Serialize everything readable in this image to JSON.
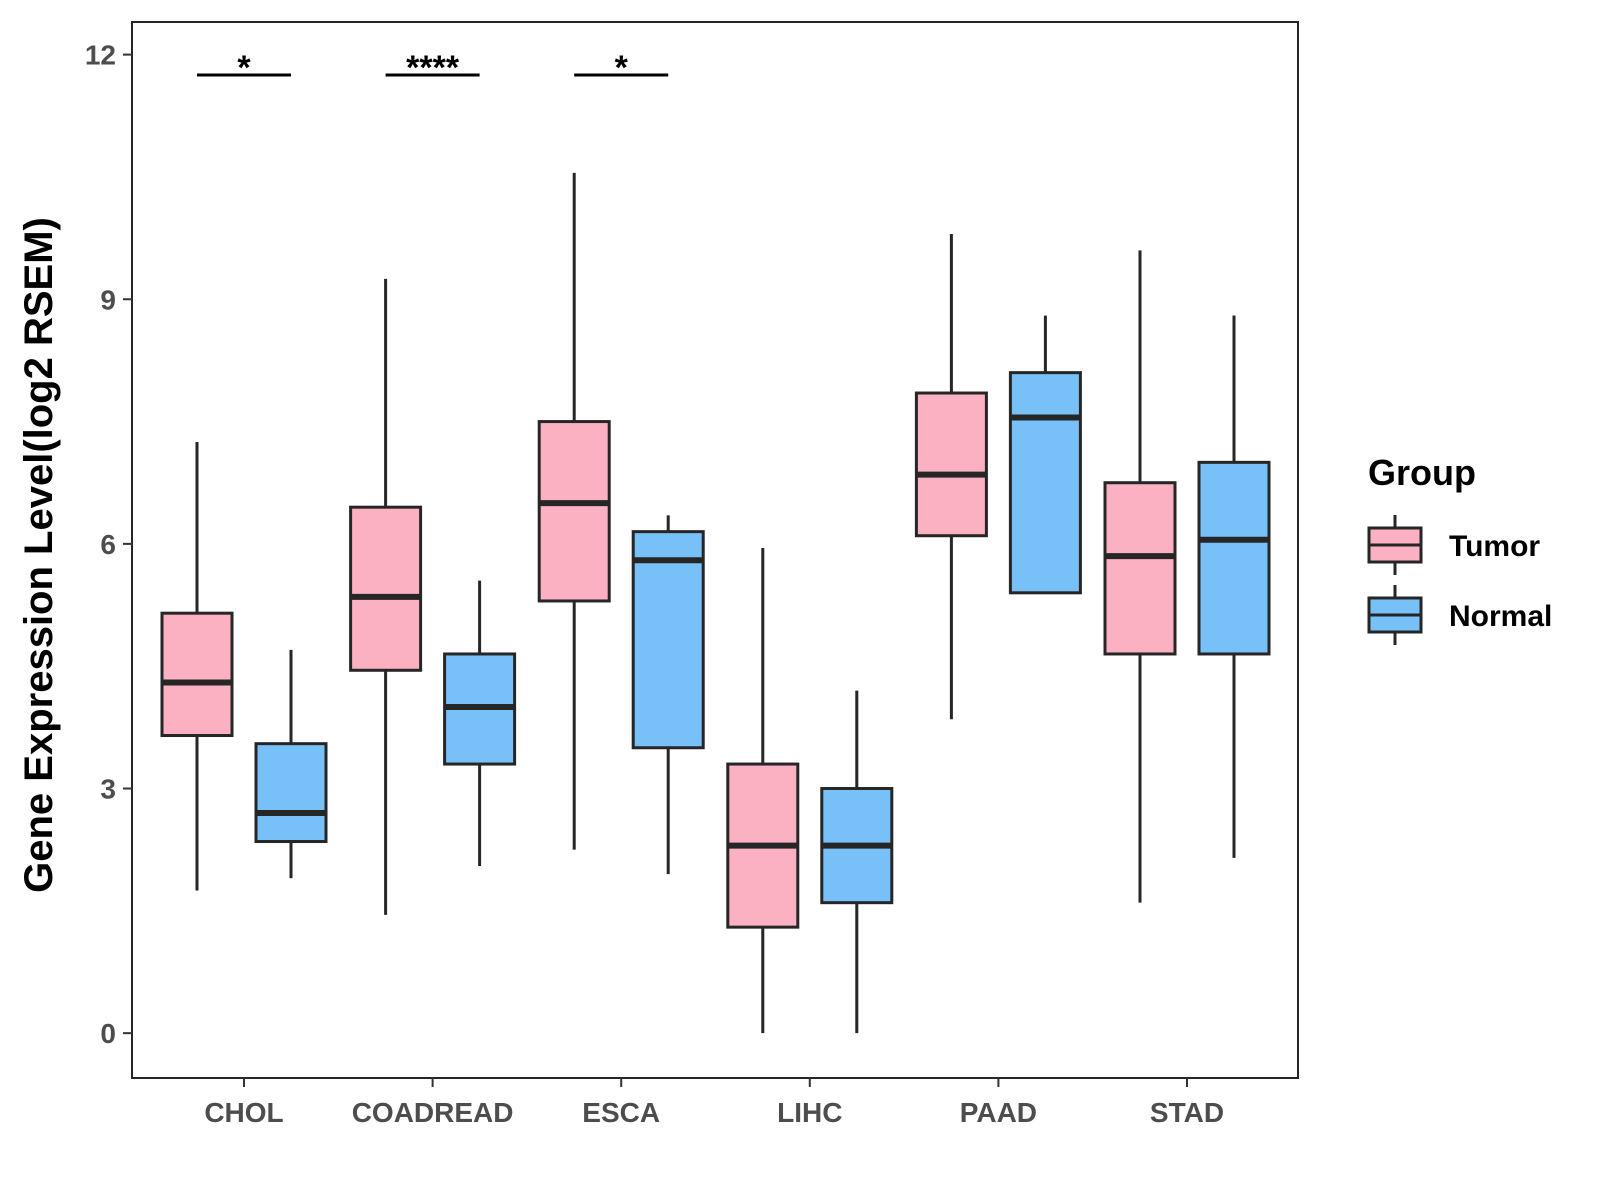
{
  "chart_data": {
    "type": "boxplot",
    "title": "",
    "xlabel": "",
    "ylabel": "Gene Expression Level(log2 RSEM)",
    "ylim": [
      -0.55,
      12.4
    ],
    "yticks": [
      "0",
      "3",
      "6",
      "9",
      "12"
    ],
    "ytick_values": [
      0,
      3,
      6,
      9,
      12
    ],
    "categories": [
      "CHOL",
      "COADREAD",
      "ESCA",
      "LIHC",
      "PAAD",
      "STAD"
    ],
    "legend": {
      "title": "Group",
      "position": "right"
    },
    "series": [
      {
        "name": "Tumor",
        "color": "#fbb1c1",
        "boxes": [
          {
            "whisker_low": 1.75,
            "q1": 3.65,
            "median": 4.3,
            "q3": 5.15,
            "whisker_high": 7.25
          },
          {
            "whisker_low": 1.45,
            "q1": 4.45,
            "median": 5.35,
            "q3": 6.45,
            "whisker_high": 9.25
          },
          {
            "whisker_low": 2.25,
            "q1": 5.3,
            "median": 6.5,
            "q3": 7.5,
            "whisker_high": 10.55
          },
          {
            "whisker_low": 0.0,
            "q1": 1.3,
            "median": 2.3,
            "q3": 3.3,
            "whisker_high": 5.95
          },
          {
            "whisker_low": 3.85,
            "q1": 6.1,
            "median": 6.85,
            "q3": 7.85,
            "whisker_high": 9.8
          },
          {
            "whisker_low": 1.6,
            "q1": 4.65,
            "median": 5.85,
            "q3": 6.75,
            "whisker_high": 9.6
          }
        ]
      },
      {
        "name": "Normal",
        "color": "#78c1f8",
        "boxes": [
          {
            "whisker_low": 1.9,
            "q1": 2.35,
            "median": 2.7,
            "q3": 3.55,
            "whisker_high": 4.7
          },
          {
            "whisker_low": 2.05,
            "q1": 3.3,
            "median": 4.0,
            "q3": 4.65,
            "whisker_high": 5.55
          },
          {
            "whisker_low": 1.95,
            "q1": 3.5,
            "median": 5.8,
            "q3": 6.15,
            "whisker_high": 6.35
          },
          {
            "whisker_low": 0.0,
            "q1": 1.6,
            "median": 2.3,
            "q3": 3.0,
            "whisker_high": 4.2
          },
          {
            "whisker_low": 5.4,
            "q1": 5.4,
            "median": 7.55,
            "q3": 8.1,
            "whisker_high": 8.8
          },
          {
            "whisker_low": 2.15,
            "q1": 4.65,
            "median": 6.05,
            "q3": 7.0,
            "whisker_high": 8.8
          }
        ]
      }
    ],
    "significance": [
      {
        "category": "CHOL",
        "label": "*",
        "y": 11.75
      },
      {
        "category": "COADREAD",
        "label": "****",
        "y": 11.75
      },
      {
        "category": "ESCA",
        "label": "*",
        "y": 11.75
      }
    ]
  }
}
